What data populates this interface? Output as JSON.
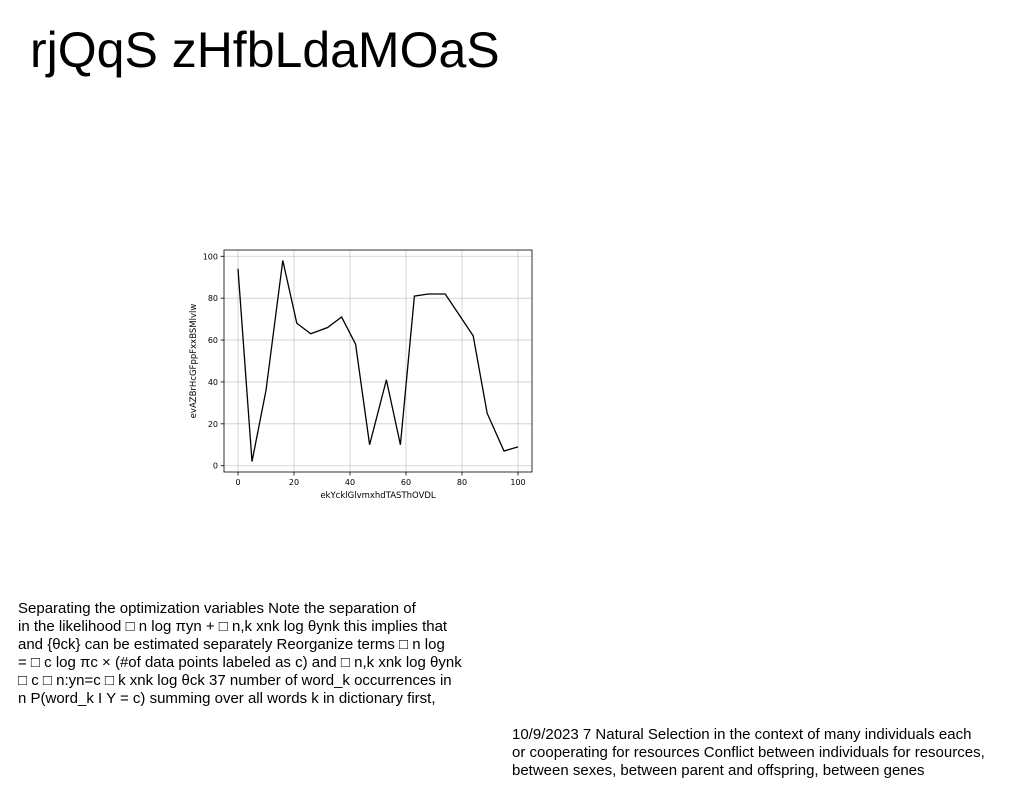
{
  "title": "rjQqS zHfbLdaMOaS",
  "chart_data": {
    "type": "line",
    "x": [
      0,
      5,
      10,
      16,
      21,
      26,
      32,
      37,
      42,
      47,
      53,
      58,
      63,
      68,
      74,
      79,
      84,
      89,
      95,
      100
    ],
    "series": [
      {
        "values": [
          94,
          2,
          36,
          98,
          68,
          63,
          66,
          71,
          58,
          10,
          41,
          10,
          81,
          82,
          82,
          72,
          62,
          25,
          7,
          9
        ]
      }
    ],
    "xlabel": "ekYcklGlvmxhdTASThOVDL",
    "ylabel": "evAZBrHcGFppFxxBSMlvlw",
    "xlim": [
      -5,
      105
    ],
    "ylim": [
      -3,
      103
    ],
    "xticks": [
      0,
      20,
      40,
      60,
      80,
      100
    ],
    "yticks": [
      0,
      20,
      40,
      60,
      80,
      100
    ],
    "grid": true,
    "line_color": "#000000",
    "grid_color": "#cccccc"
  },
  "paragraph_left": {
    "lines": [
      "Separating the optimization variables Note the separation of",
      "in the likelihood □ n log πyn + □ n,k xnk log θynk this implies that",
      "and {θck} can be estimated separately Reorganize terms □ n log",
      "= □ c log πc × (#of data points labeled as c) and □ n,k xnk log θynk",
      "□ c □ n:yn=c □ k xnk log θck 37 number of word_k occurrences in",
      "n P(word_k I Y = c) summing over all words k in dictionary first,"
    ]
  },
  "paragraph_right": {
    "lines": [
      "10/9/2023 7 Natural Selection in the context of many individuals each",
      "or cooperating for resources Conflict between individuals for resources,",
      "between sexes, between parent and offspring, between genes"
    ]
  }
}
